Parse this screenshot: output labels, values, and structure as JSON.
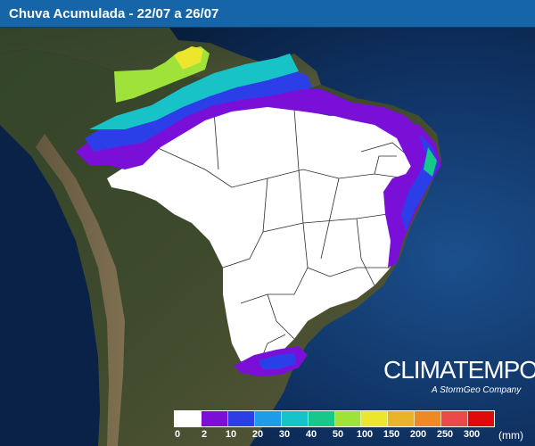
{
  "header": {
    "title": "Chuva Acumulada - 22/07 a 26/07"
  },
  "brand": {
    "name": "CLIMATEMPO",
    "tagline": "A StormGeo Company"
  },
  "legend": {
    "unit": "(mm)",
    "labels": [
      "0",
      "2",
      "10",
      "20",
      "30",
      "40",
      "50",
      "100",
      "150",
      "200",
      "250",
      "300"
    ],
    "colors": [
      "#ffffff",
      "#7a0fd8",
      "#2c3ee8",
      "#1f9ce8",
      "#18c3c8",
      "#18c88a",
      "#9ee23a",
      "#ece62c",
      "#e8b42a",
      "#ee8a26",
      "#ec4a4a",
      "#e00a0a"
    ]
  },
  "colors": {
    "header_bg": "#1565a8",
    "ocean": "#0c2e5c",
    "land": "#2c3d24",
    "dry_region": "#ffffff"
  }
}
